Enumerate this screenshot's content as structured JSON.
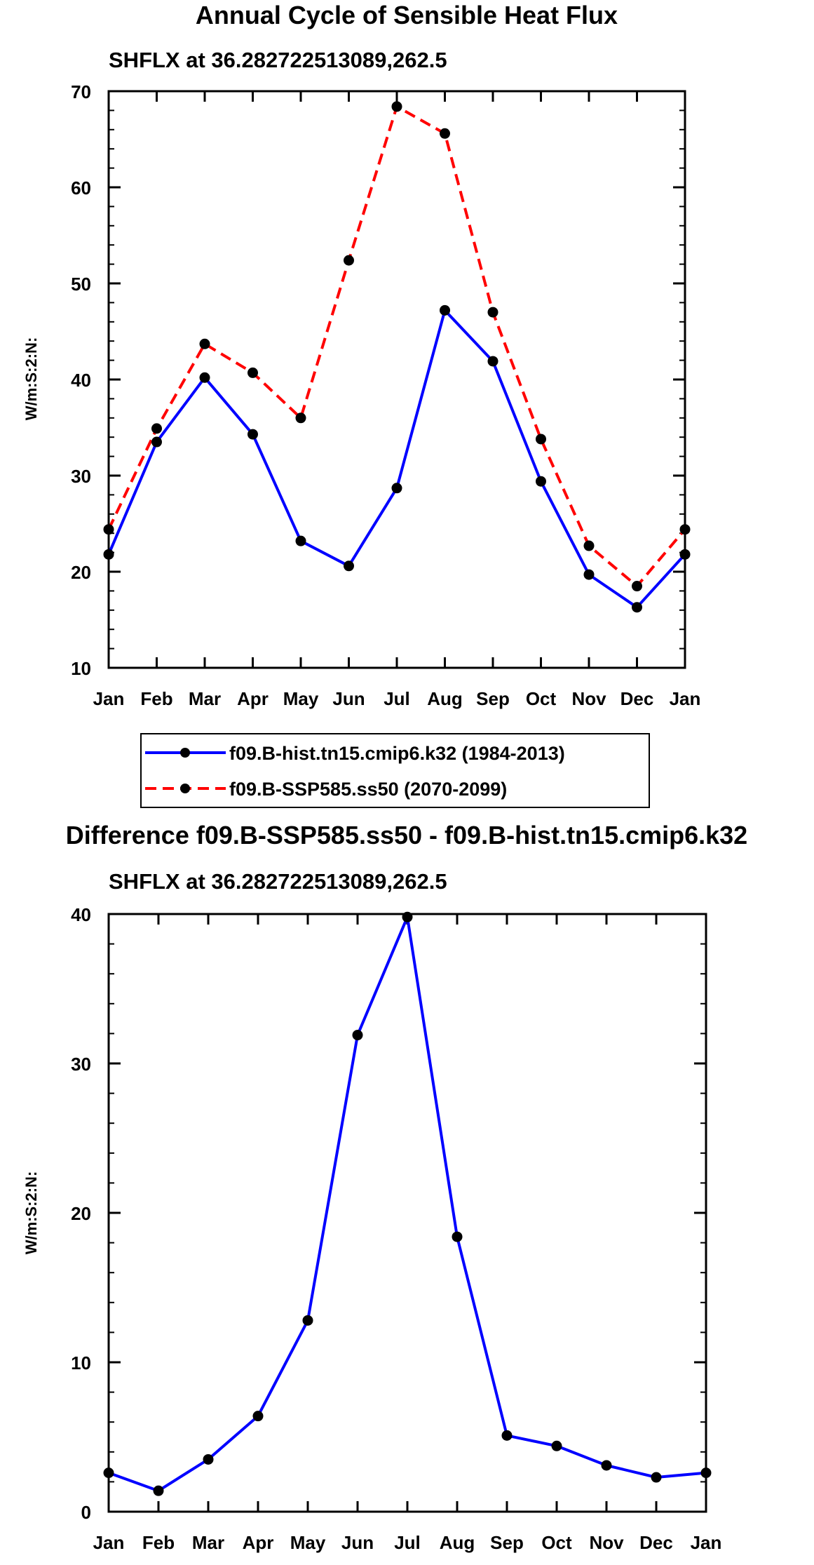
{
  "chart_data": [
    {
      "type": "line",
      "title": "Annual Cycle of Sensible Heat Flux",
      "subtitle": "SHFLX at 36.282722513089,262.5",
      "xlabel": "",
      "ylabel": "W/m:S:2:N:",
      "ylim": [
        10,
        70
      ],
      "yticks": [
        10,
        20,
        30,
        40,
        50,
        60,
        70
      ],
      "categories": [
        "Jan",
        "Feb",
        "Mar",
        "Apr",
        "May",
        "Jun",
        "Jul",
        "Aug",
        "Sep",
        "Oct",
        "Nov",
        "Dec",
        "Jan"
      ],
      "grid": false,
      "legend_position": "bottom",
      "series": [
        {
          "name": "f09.B-hist.tn15.cmip6.k32 (1984-2013)",
          "color": "#0000ff",
          "dash": "solid",
          "values": [
            21.8,
            33.5,
            40.2,
            34.3,
            23.2,
            20.6,
            28.7,
            47.2,
            41.9,
            29.4,
            19.7,
            16.3,
            21.8
          ]
        },
        {
          "name": "f09.B-SSP585.ss50 (2070-2099)",
          "color": "#ff0000",
          "dash": "dashed",
          "values": [
            24.4,
            34.9,
            43.7,
            40.7,
            36.0,
            52.4,
            68.4,
            65.6,
            47.0,
            33.8,
            22.7,
            18.5,
            24.4
          ]
        }
      ]
    },
    {
      "type": "line",
      "title": "Difference f09.B-SSP585.ss50 - f09.B-hist.tn15.cmip6.k32",
      "subtitle": "SHFLX at 36.282722513089,262.5",
      "xlabel": "",
      "ylabel": "W/m:S:2:N:",
      "ylim": [
        0,
        40
      ],
      "yticks": [
        0,
        10,
        20,
        30,
        40
      ],
      "categories": [
        "Jan",
        "Feb",
        "Mar",
        "Apr",
        "May",
        "Jun",
        "Jul",
        "Aug",
        "Sep",
        "Oct",
        "Nov",
        "Dec",
        "Jan"
      ],
      "grid": false,
      "series": [
        {
          "name": "Difference",
          "color": "#0000ff",
          "dash": "solid",
          "values": [
            2.6,
            1.4,
            3.5,
            6.4,
            12.8,
            31.9,
            39.8,
            18.4,
            5.1,
            4.4,
            3.1,
            2.3,
            2.6
          ]
        }
      ]
    }
  ]
}
